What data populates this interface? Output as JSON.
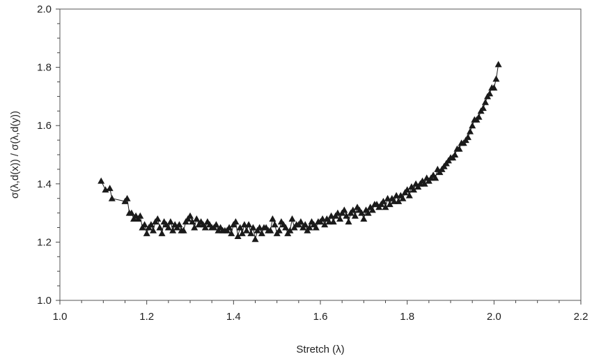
{
  "chart_data": {
    "type": "scatter",
    "xlabel": "Stretch (λ)",
    "ylabel": "σ(λ,d(x)) / σ(λ,d(y))",
    "xlim": [
      1.0,
      2.2
    ],
    "ylim": [
      1.0,
      2.0
    ],
    "x_ticks": [
      "1.0",
      "1.2",
      "1.4",
      "1.6",
      "1.8",
      "2.0",
      "2.2"
    ],
    "y_ticks": [
      "1.0",
      "1.2",
      "1.4",
      "1.6",
      "1.8",
      "2.0"
    ],
    "grid": false,
    "legend": "none",
    "marker": "triangle",
    "connected": true,
    "color": "#1a1a1a",
    "points": [
      [
        1.095,
        1.41
      ],
      [
        1.105,
        1.38
      ],
      [
        1.115,
        1.385
      ],
      [
        1.12,
        1.35
      ],
      [
        1.15,
        1.34
      ],
      [
        1.155,
        1.35
      ],
      [
        1.16,
        1.3
      ],
      [
        1.165,
        1.3
      ],
      [
        1.17,
        1.28
      ],
      [
        1.175,
        1.29
      ],
      [
        1.18,
        1.28
      ],
      [
        1.185,
        1.29
      ],
      [
        1.19,
        1.25
      ],
      [
        1.195,
        1.26
      ],
      [
        1.2,
        1.23
      ],
      [
        1.205,
        1.25
      ],
      [
        1.21,
        1.26
      ],
      [
        1.215,
        1.24
      ],
      [
        1.22,
        1.27
      ],
      [
        1.225,
        1.28
      ],
      [
        1.23,
        1.25
      ],
      [
        1.235,
        1.23
      ],
      [
        1.24,
        1.27
      ],
      [
        1.245,
        1.26
      ],
      [
        1.25,
        1.25
      ],
      [
        1.255,
        1.27
      ],
      [
        1.26,
        1.24
      ],
      [
        1.265,
        1.26
      ],
      [
        1.27,
        1.25
      ],
      [
        1.275,
        1.26
      ],
      [
        1.28,
        1.24
      ],
      [
        1.285,
        1.24
      ],
      [
        1.29,
        1.27
      ],
      [
        1.295,
        1.28
      ],
      [
        1.3,
        1.29
      ],
      [
        1.305,
        1.27
      ],
      [
        1.31,
        1.25
      ],
      [
        1.315,
        1.28
      ],
      [
        1.32,
        1.26
      ],
      [
        1.325,
        1.27
      ],
      [
        1.33,
        1.26
      ],
      [
        1.335,
        1.25
      ],
      [
        1.34,
        1.27
      ],
      [
        1.345,
        1.26
      ],
      [
        1.35,
        1.25
      ],
      [
        1.355,
        1.25
      ],
      [
        1.36,
        1.26
      ],
      [
        1.365,
        1.24
      ],
      [
        1.37,
        1.25
      ],
      [
        1.375,
        1.24
      ],
      [
        1.38,
        1.24
      ],
      [
        1.385,
        1.24
      ],
      [
        1.39,
        1.25
      ],
      [
        1.395,
        1.23
      ],
      [
        1.4,
        1.26
      ],
      [
        1.405,
        1.27
      ],
      [
        1.41,
        1.22
      ],
      [
        1.415,
        1.25
      ],
      [
        1.42,
        1.23
      ],
      [
        1.425,
        1.26
      ],
      [
        1.43,
        1.24
      ],
      [
        1.435,
        1.26
      ],
      [
        1.44,
        1.23
      ],
      [
        1.445,
        1.25
      ],
      [
        1.45,
        1.21
      ],
      [
        1.455,
        1.24
      ],
      [
        1.46,
        1.25
      ],
      [
        1.465,
        1.23
      ],
      [
        1.47,
        1.25
      ],
      [
        1.475,
        1.25
      ],
      [
        1.48,
        1.24
      ],
      [
        1.485,
        1.24
      ],
      [
        1.49,
        1.28
      ],
      [
        1.495,
        1.26
      ],
      [
        1.5,
        1.23
      ],
      [
        1.505,
        1.24
      ],
      [
        1.51,
        1.27
      ],
      [
        1.515,
        1.26
      ],
      [
        1.52,
        1.25
      ],
      [
        1.525,
        1.23
      ],
      [
        1.53,
        1.24
      ],
      [
        1.535,
        1.28
      ],
      [
        1.54,
        1.25
      ],
      [
        1.545,
        1.26
      ],
      [
        1.55,
        1.26
      ],
      [
        1.555,
        1.27
      ],
      [
        1.56,
        1.25
      ],
      [
        1.565,
        1.26
      ],
      [
        1.57,
        1.24
      ],
      [
        1.575,
        1.25
      ],
      [
        1.58,
        1.27
      ],
      [
        1.585,
        1.26
      ],
      [
        1.59,
        1.25
      ],
      [
        1.595,
        1.27
      ],
      [
        1.6,
        1.27
      ],
      [
        1.605,
        1.28
      ],
      [
        1.61,
        1.26
      ],
      [
        1.615,
        1.28
      ],
      [
        1.62,
        1.27
      ],
      [
        1.625,
        1.29
      ],
      [
        1.63,
        1.27
      ],
      [
        1.635,
        1.29
      ],
      [
        1.64,
        1.3
      ],
      [
        1.645,
        1.28
      ],
      [
        1.65,
        1.3
      ],
      [
        1.655,
        1.31
      ],
      [
        1.66,
        1.29
      ],
      [
        1.665,
        1.27
      ],
      [
        1.67,
        1.3
      ],
      [
        1.675,
        1.31
      ],
      [
        1.68,
        1.29
      ],
      [
        1.685,
        1.32
      ],
      [
        1.69,
        1.31
      ],
      [
        1.695,
        1.3
      ],
      [
        1.7,
        1.28
      ],
      [
        1.705,
        1.31
      ],
      [
        1.71,
        1.3
      ],
      [
        1.715,
        1.32
      ],
      [
        1.72,
        1.31
      ],
      [
        1.725,
        1.33
      ],
      [
        1.73,
        1.33
      ],
      [
        1.735,
        1.32
      ],
      [
        1.74,
        1.33
      ],
      [
        1.745,
        1.34
      ],
      [
        1.75,
        1.32
      ],
      [
        1.755,
        1.35
      ],
      [
        1.76,
        1.33
      ],
      [
        1.765,
        1.35
      ],
      [
        1.77,
        1.34
      ],
      [
        1.775,
        1.36
      ],
      [
        1.78,
        1.34
      ],
      [
        1.785,
        1.36
      ],
      [
        1.79,
        1.35
      ],
      [
        1.795,
        1.37
      ],
      [
        1.8,
        1.38
      ],
      [
        1.805,
        1.36
      ],
      [
        1.81,
        1.39
      ],
      [
        1.815,
        1.38
      ],
      [
        1.82,
        1.4
      ],
      [
        1.825,
        1.39
      ],
      [
        1.83,
        1.4
      ],
      [
        1.835,
        1.41
      ],
      [
        1.84,
        1.4
      ],
      [
        1.845,
        1.42
      ],
      [
        1.85,
        1.41
      ],
      [
        1.855,
        1.42
      ],
      [
        1.86,
        1.43
      ],
      [
        1.865,
        1.42
      ],
      [
        1.87,
        1.45
      ],
      [
        1.875,
        1.44
      ],
      [
        1.88,
        1.45
      ],
      [
        1.885,
        1.46
      ],
      [
        1.89,
        1.47
      ],
      [
        1.895,
        1.48
      ],
      [
        1.9,
        1.49
      ],
      [
        1.905,
        1.49
      ],
      [
        1.91,
        1.5
      ],
      [
        1.915,
        1.52
      ],
      [
        1.92,
        1.52
      ],
      [
        1.925,
        1.54
      ],
      [
        1.93,
        1.54
      ],
      [
        1.935,
        1.55
      ],
      [
        1.94,
        1.56
      ],
      [
        1.945,
        1.58
      ],
      [
        1.95,
        1.6
      ],
      [
        1.955,
        1.62
      ],
      [
        1.96,
        1.62
      ],
      [
        1.965,
        1.63
      ],
      [
        1.97,
        1.65
      ],
      [
        1.975,
        1.66
      ],
      [
        1.98,
        1.68
      ],
      [
        1.985,
        1.7
      ],
      [
        1.99,
        1.71
      ],
      [
        1.995,
        1.73
      ],
      [
        2.0,
        1.73
      ],
      [
        2.005,
        1.76
      ],
      [
        2.01,
        1.81
      ]
    ]
  }
}
